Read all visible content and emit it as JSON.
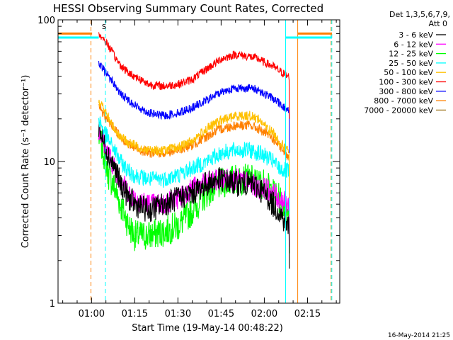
{
  "chart_data": {
    "type": "line",
    "title": "HESSI Observing Summary Count Rates, Corrected",
    "xlabel": "Start Time (19-May-14 00:48:22)",
    "ylabel": "Corrected Count Rate (s⁻¹ detector⁻¹)",
    "x_start": "00:48:22",
    "x_ticks": [
      "01:00",
      "01:15",
      "01:30",
      "01:45",
      "02:00",
      "02:15"
    ],
    "x_tick_minutes": [
      60,
      75,
      90,
      105,
      120,
      135
    ],
    "xlim_minutes": [
      48.37,
      146.2
    ],
    "y_scale": "log",
    "ylim": [
      1,
      100
    ],
    "y_ticks": [
      "1",
      "10",
      "100"
    ],
    "y_tick_values": [
      1,
      10,
      100
    ],
    "legend_header": [
      "Det 1,3,5,6,7,9,",
      "Att 0"
    ],
    "legend_position": "right",
    "footer_date": "16-May-2014 21:25",
    "annotation": "S",
    "data_start_minute": 62.5,
    "data_end_minute": 128.7,
    "series": [
      {
        "name": "3 - 6 keV",
        "color": "#000000",
        "x": [
          62.5,
          64,
          66,
          68,
          70,
          73,
          75,
          80,
          85,
          90,
          95,
          100,
          105,
          110,
          115,
          118,
          120,
          123,
          125,
          128
        ],
        "y": [
          18,
          14,
          11,
          9,
          7,
          5.5,
          5,
          4.5,
          5,
          5.5,
          6,
          7,
          7.5,
          7,
          7,
          6.5,
          6,
          5,
          4.5,
          3.5
        ]
      },
      {
        "name": "6 - 12 keV",
        "color": "#ff00ff",
        "x": [
          62.5,
          64,
          66,
          68,
          70,
          73,
          75,
          80,
          85,
          90,
          95,
          100,
          105,
          110,
          115,
          118,
          120,
          123,
          125,
          128
        ],
        "y": [
          17,
          14,
          11,
          9,
          7.5,
          6,
          5.5,
          5,
          5,
          5.5,
          6.5,
          7,
          7.5,
          7.5,
          7,
          6.5,
          6.5,
          6,
          5.5,
          5
        ]
      },
      {
        "name": "12 - 25 keV",
        "color": "#00ff00",
        "x": [
          62.5,
          64,
          66,
          68,
          70,
          73,
          75,
          80,
          85,
          90,
          95,
          100,
          105,
          110,
          115,
          118,
          120,
          123,
          125,
          128
        ],
        "y": [
          15,
          12,
          8,
          6.5,
          5,
          3.5,
          3,
          3,
          3.2,
          3.5,
          4.5,
          6,
          7,
          7.5,
          7.5,
          7,
          7,
          6,
          5.5,
          4.5
        ]
      },
      {
        "name": "25 - 50 keV",
        "color": "#00ffff",
        "x": [
          62.5,
          64,
          66,
          68,
          70,
          73,
          75,
          80,
          85,
          90,
          95,
          100,
          105,
          110,
          115,
          118,
          120,
          123,
          125,
          128
        ],
        "y": [
          20,
          17,
          14,
          12,
          10,
          8.5,
          8,
          7.5,
          7.5,
          8,
          9,
          10,
          11.5,
          12,
          12,
          11.5,
          11,
          10,
          9,
          8.5
        ]
      },
      {
        "name": "50 - 100 keV",
        "color": "#ffc000",
        "x": [
          62.5,
          64,
          66,
          68,
          70,
          73,
          75,
          80,
          85,
          90,
          95,
          100,
          105,
          110,
          115,
          118,
          120,
          123,
          125,
          128
        ],
        "y": [
          27,
          24,
          20,
          17,
          15,
          13.5,
          13,
          12,
          12,
          12.5,
          14,
          17,
          19.5,
          21,
          21,
          20,
          18,
          16,
          14,
          12
        ]
      },
      {
        "name": "100 - 300 keV",
        "color": "#ff0000",
        "x": [
          62.5,
          64,
          66,
          68,
          70,
          73,
          75,
          80,
          85,
          90,
          95,
          100,
          105,
          110,
          115,
          118,
          120,
          123,
          125,
          128
        ],
        "y": [
          80,
          74,
          65,
          55,
          48,
          42,
          40,
          35,
          34,
          35,
          38,
          45,
          53,
          57,
          55,
          53,
          50,
          47,
          44,
          40
        ]
      },
      {
        "name": "300 - 800 keV",
        "color": "#0000ff",
        "x": [
          62.5,
          64,
          66,
          68,
          70,
          73,
          75,
          80,
          85,
          90,
          95,
          100,
          105,
          110,
          115,
          118,
          120,
          123,
          125,
          128
        ],
        "y": [
          48,
          45,
          40,
          35,
          30,
          27,
          25,
          22,
          21,
          22,
          24,
          27,
          31,
          33,
          33,
          32,
          30,
          28,
          26,
          23
        ]
      },
      {
        "name": "800 - 7000 keV",
        "color": "#ff8000",
        "x": [
          62.5,
          64,
          66,
          68,
          70,
          73,
          75,
          80,
          85,
          90,
          95,
          100,
          105,
          110,
          115,
          118,
          120,
          123,
          125,
          128
        ],
        "y": [
          24,
          22,
          19,
          17,
          15,
          13,
          12.5,
          11.5,
          11.5,
          12,
          13,
          15,
          17,
          18,
          18,
          17,
          16,
          14.5,
          13,
          11
        ]
      },
      {
        "name": "7000 - 20000 keV",
        "color": "#a07820",
        "x": [],
        "y": []
      }
    ],
    "saa_segments": [
      {
        "color": "#ff8000",
        "x": [
          48.37,
          60.2
        ],
        "y": 80
      },
      {
        "color": "#00ffff",
        "x": [
          48.37,
          62.5
        ],
        "y": 75
      },
      {
        "color": "#ff8000",
        "x": [
          131.6,
          143.5
        ],
        "y": 80
      },
      {
        "color": "#00ffff",
        "x": [
          127.5,
          143.5
        ],
        "y": 75
      }
    ],
    "vertical_markers": [
      {
        "x": 59.8,
        "color": "#ff8000",
        "style": "dashed"
      },
      {
        "x": 64.8,
        "color": "#00ffff",
        "style": "dashed"
      },
      {
        "x": 127.4,
        "color": "#00ffff",
        "style": "solid"
      },
      {
        "x": 131.6,
        "color": "#ff8000",
        "style": "solid"
      },
      {
        "x": 143.2,
        "color": "#ff8000",
        "style": "dashed"
      },
      {
        "x": 143.2,
        "color": "#00ffff",
        "style": "dashed"
      }
    ]
  }
}
